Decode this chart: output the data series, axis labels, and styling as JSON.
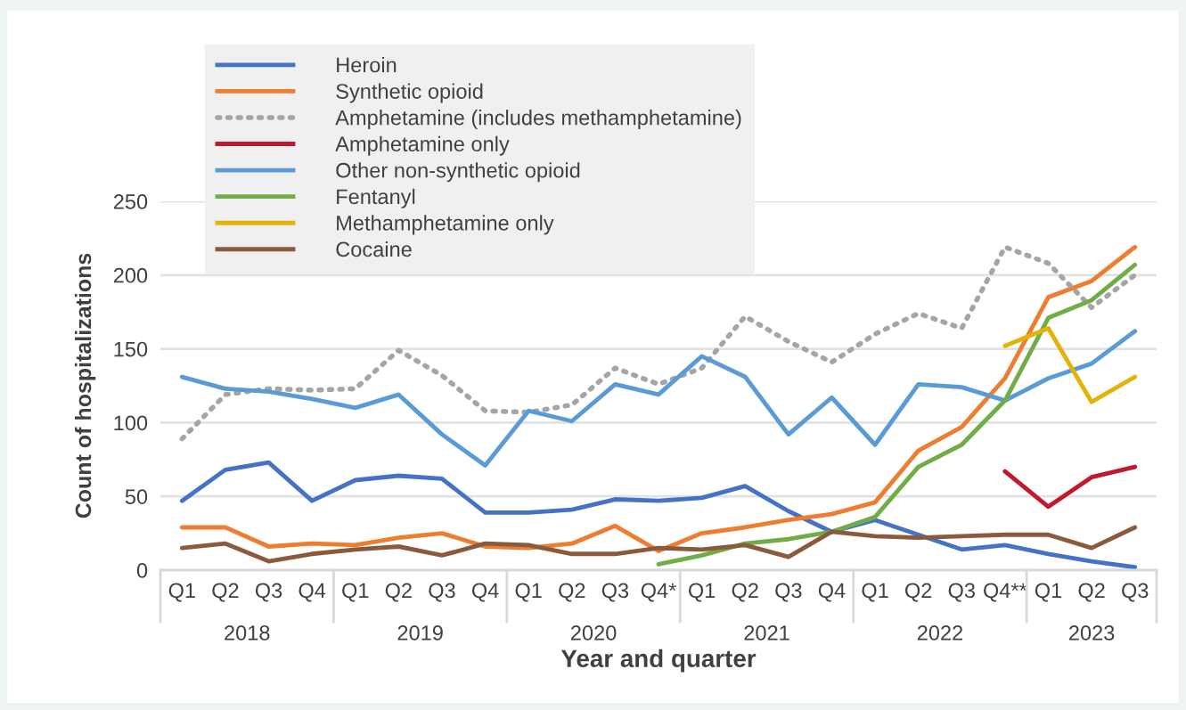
{
  "chart_data": {
    "type": "line",
    "xlabel": "Year and quarter",
    "ylabel": "Count of hospitalizations",
    "categories": [
      "Q1",
      "Q2",
      "Q3",
      "Q4",
      "Q1",
      "Q2",
      "Q3",
      "Q4",
      "Q1",
      "Q2",
      "Q3",
      "Q4*",
      "Q1",
      "Q2",
      "Q3",
      "Q4",
      "Q1",
      "Q2",
      "Q3",
      "Q4**",
      "Q1",
      "Q2",
      "Q3"
    ],
    "annotations": [
      "2018",
      "2019",
      "2020",
      "2021",
      "2022",
      "2023"
    ],
    "ylim": [
      0,
      250
    ],
    "yticks": [
      0,
      50,
      100,
      150,
      200,
      250
    ],
    "grid": "y",
    "legend": "top left",
    "marker": "none",
    "series": [
      {
        "name": "Heroin",
        "color": "#4472c4",
        "line_style": "solid",
        "values": [
          47,
          68,
          73,
          47,
          61,
          64,
          62,
          39,
          39,
          41,
          48,
          47,
          49,
          57,
          40,
          26,
          34,
          24,
          14,
          17,
          11,
          6,
          2
        ]
      },
      {
        "name": "Synthetic opioid",
        "color": "#ed7d31",
        "line_style": "solid",
        "values": [
          29,
          29,
          16,
          18,
          17,
          22,
          25,
          16,
          15,
          18,
          30,
          13,
          25,
          29,
          34,
          38,
          46,
          81,
          97,
          130,
          185,
          196,
          219
        ]
      },
      {
        "name": "Amphetamine (includes methamphetamine)",
        "color": "#a5a5a5",
        "line_style": "dotted",
        "values": [
          89,
          119,
          123,
          122,
          123,
          149,
          132,
          108,
          107,
          112,
          137,
          126,
          137,
          172,
          155,
          141,
          160,
          174,
          164,
          219,
          208,
          178,
          200
        ]
      },
      {
        "name": "Amphetamine only",
        "color": "#c0182f",
        "line_style": "solid",
        "values": [
          null,
          null,
          null,
          null,
          null,
          null,
          null,
          null,
          null,
          null,
          null,
          null,
          null,
          null,
          null,
          null,
          null,
          null,
          null,
          67,
          43,
          63,
          70
        ]
      },
      {
        "name": "Other non-synthetic opioid",
        "color": "#5b9bd5",
        "line_style": "solid",
        "values": [
          131,
          123,
          121,
          116,
          110,
          119,
          92,
          71,
          108,
          101,
          126,
          119,
          145,
          131,
          92,
          117,
          85,
          126,
          124,
          115,
          130,
          140,
          162
        ]
      },
      {
        "name": "Fentanyl",
        "color": "#70ad47",
        "line_style": "solid",
        "values": [
          null,
          null,
          null,
          null,
          null,
          null,
          null,
          null,
          null,
          null,
          null,
          4,
          10,
          18,
          21,
          26,
          36,
          70,
          85,
          115,
          171,
          183,
          207
        ]
      },
      {
        "name": "Methamphetamine only",
        "color": "#e2b40a",
        "line_style": "solid",
        "values": [
          null,
          null,
          null,
          null,
          null,
          null,
          null,
          null,
          null,
          null,
          null,
          null,
          null,
          null,
          null,
          null,
          null,
          null,
          null,
          152,
          164,
          114,
          131
        ]
      },
      {
        "name": "Cocaine",
        "color": "#8b5a3c",
        "line_style": "solid",
        "values": [
          15,
          18,
          6,
          11,
          14,
          16,
          10,
          18,
          17,
          11,
          11,
          15,
          14,
          17,
          9,
          26,
          23,
          22,
          23,
          24,
          24,
          15,
          29
        ]
      }
    ]
  }
}
